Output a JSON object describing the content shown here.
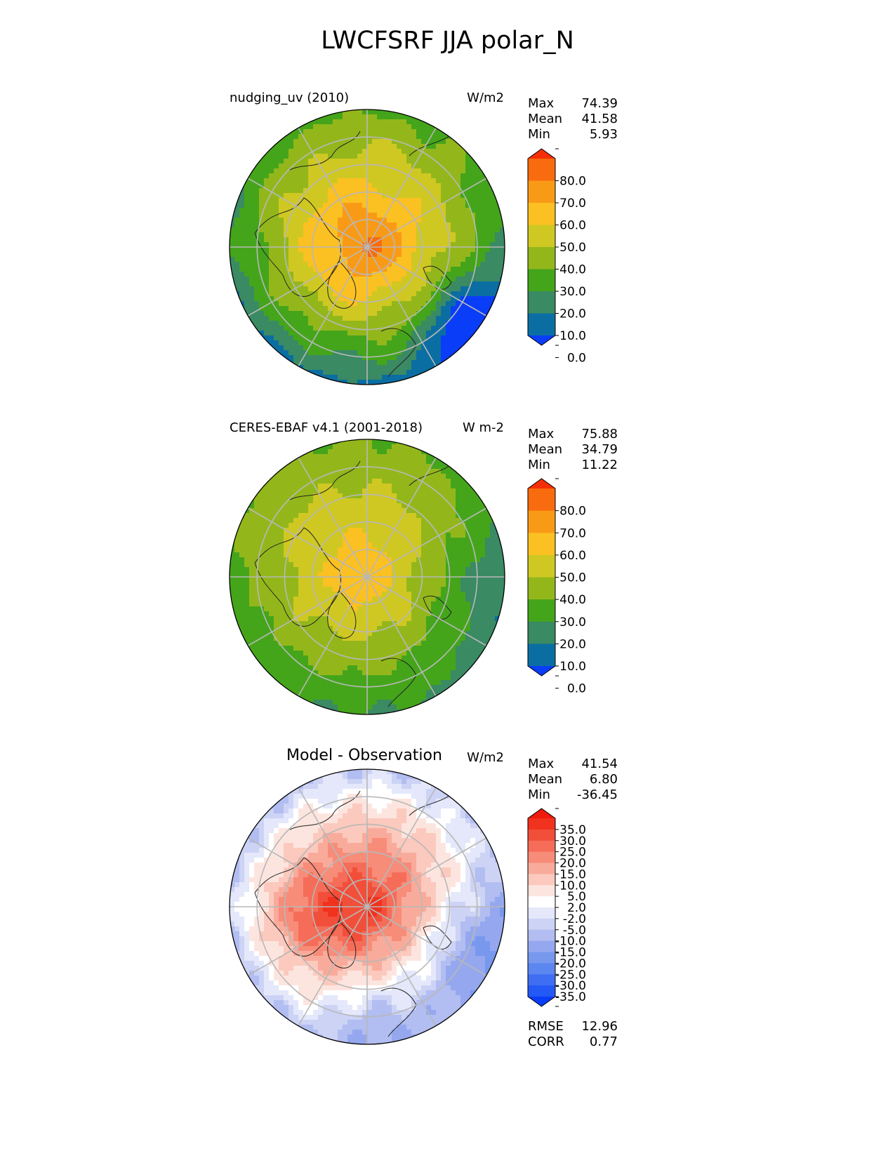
{
  "figure": {
    "title": "LWCFSRF JJA polar_N"
  },
  "colors": {
    "abs_levels": [
      "#0a3df8",
      "#0b6ea2",
      "#3a8a63",
      "#44a51b",
      "#93b71b",
      "#cfc823",
      "#fbc021",
      "#f99a17",
      "#f86b0e",
      "#f52e07"
    ],
    "diff_levels": [
      "#0a3df8",
      "#2459f5",
      "#3f6ef3",
      "#5c86f0",
      "#7898ee",
      "#95a8ef",
      "#b2bdf1",
      "#cdd3f5",
      "#e4e8fa",
      "#ffffff",
      "#fde5df",
      "#fbc9bd",
      "#f9ab9b",
      "#f78c79",
      "#f56d58",
      "#f24f3a",
      "#f0321f",
      "#ee1a0b"
    ],
    "grid": "#b8b8b8",
    "coast": "#222222"
  },
  "panels": [
    {
      "title": "nudging_uv (2010)",
      "units": "W/m2",
      "stats": [
        {
          "label": "Max",
          "value": "74.39"
        },
        {
          "label": "Mean",
          "value": "41.58"
        },
        {
          "label": "Min",
          "value": "5.93"
        }
      ],
      "ticks": [
        "80.0",
        "70.0",
        "60.0",
        "50.0",
        "40.0",
        "30.0",
        "20.0",
        "10.0",
        "0.0"
      ]
    },
    {
      "title": "CERES-EBAF v4.1 (2001-2018)",
      "units": "W m-2",
      "stats": [
        {
          "label": "Max",
          "value": "75.88"
        },
        {
          "label": "Mean",
          "value": "34.79"
        },
        {
          "label": "Min",
          "value": "11.22"
        }
      ],
      "ticks": [
        "80.0",
        "70.0",
        "60.0",
        "50.0",
        "40.0",
        "30.0",
        "20.0",
        "10.0",
        "0.0"
      ]
    },
    {
      "title": "Model - Observation",
      "units": "W/m2",
      "stats": [
        {
          "label": "Max",
          "value": "41.54"
        },
        {
          "label": "Mean",
          "value": "6.80"
        },
        {
          "label": "Min",
          "value": "-36.45"
        }
      ],
      "ticks": [
        "35.0",
        "30.0",
        "25.0",
        "20.0",
        "15.0",
        "10.0",
        "5.0",
        "2.0",
        "-2.0",
        "-5.0",
        "-10.0",
        "-15.0",
        "-20.0",
        "-25.0",
        "-30.0",
        "-35.0"
      ],
      "metrics": [
        {
          "label": "RMSE",
          "value": "12.96"
        },
        {
          "label": "CORR",
          "value": "0.77"
        }
      ]
    }
  ],
  "chart_data": [
    {
      "type": "heatmap",
      "title": "nudging_uv (2010)",
      "projection": "north polar stereographic",
      "units": "W/m2",
      "contour_levels": [
        0,
        10,
        20,
        30,
        40,
        50,
        60,
        70,
        80
      ],
      "stats": {
        "max": 74.39,
        "mean": 41.58,
        "min": 5.93
      },
      "pattern": "maximum (70-80) over central Arctic Ocean; 50-60 over Greenland and Siberia; 20-30 over North Atlantic/North Pacific margins; minimum (0-10) off Norway"
    },
    {
      "type": "heatmap",
      "title": "CERES-EBAF v4.1 (2001-2018)",
      "projection": "north polar stereographic",
      "units": "W m-2",
      "contour_levels": [
        0,
        10,
        20,
        30,
        40,
        50,
        60,
        70,
        80
      ],
      "stats": {
        "max": 75.88,
        "mean": 34.79,
        "min": 11.22
      },
      "pattern": "50-60 near the pole; 40-50 over most land and Arctic Ocean; 20-30 over North Atlantic and Pacific"
    },
    {
      "type": "heatmap",
      "title": "Model - Observation",
      "projection": "north polar stereographic",
      "units": "W/m2",
      "contour_levels": [
        -35,
        -30,
        -25,
        -20,
        -15,
        -10,
        -5,
        -2,
        2,
        5,
        10,
        15,
        20,
        25,
        30,
        35
      ],
      "stats": {
        "max": 41.54,
        "mean": 6.8,
        "min": -36.45,
        "rmse": 12.96,
        "corr": 0.77
      },
      "pattern": "positive bias (15-35) over central Arctic and Canadian Archipelago; negative bias (-5 to -15) over Atlantic/Scandinavian sector"
    }
  ]
}
